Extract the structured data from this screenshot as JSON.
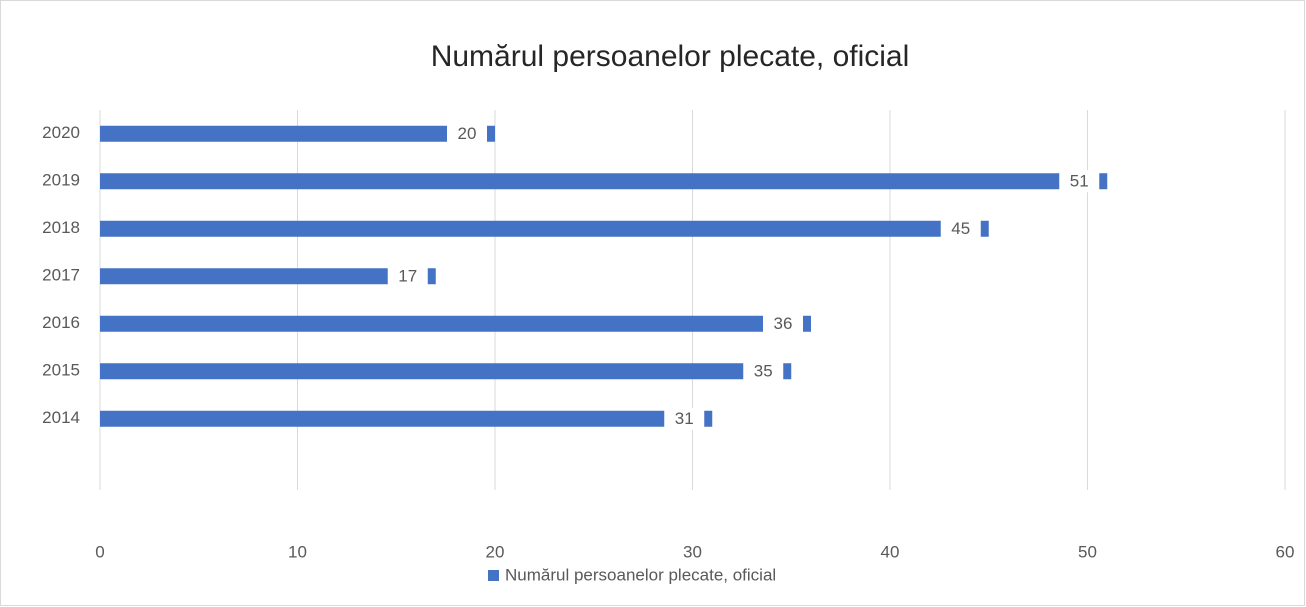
{
  "chart_data": {
    "type": "bar",
    "orientation": "horizontal",
    "title": "Numărul persoanelor plecate, oficial",
    "categories": [
      "2014",
      "2015",
      "2016",
      "2017",
      "2018",
      "2019",
      "2020"
    ],
    "series": [
      {
        "name": "Numărul persoanelor plecate, oficial",
        "color": "#4472c4",
        "values": [
          31,
          35,
          36,
          17,
          45,
          51,
          20
        ]
      }
    ],
    "xlim": [
      0,
      60
    ],
    "xticks": [
      0,
      10,
      20,
      30,
      40,
      50,
      60
    ],
    "grid": true,
    "legend": "bottom"
  }
}
